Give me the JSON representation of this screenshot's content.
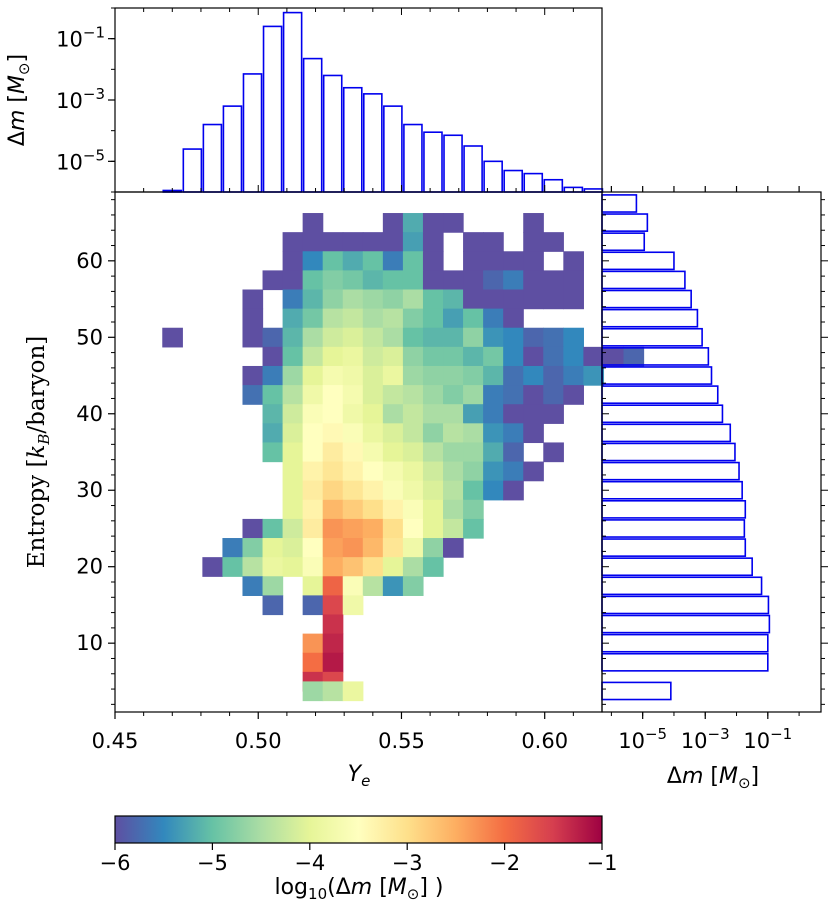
{
  "chart_data": [
    {
      "type": "heatmap",
      "panel": "main",
      "xlabel": "Y_e",
      "ylabel": "Entropy [k_B/baryon]",
      "xlim": [
        0.45,
        0.62
      ],
      "ylim": [
        1,
        69
      ],
      "x_ticks": [
        "0.45",
        "0.50",
        "0.55",
        "0.60"
      ],
      "y_ticks": [
        "10",
        "20",
        "30",
        "40",
        "50",
        "60"
      ],
      "bin_width": 0.007,
      "bin_height": 2.5,
      "x_start": 0.4665,
      "entropy_start": 3.75,
      "color_norm": [
        -6,
        -1
      ],
      "cmap": "Spectral_r",
      "rows": [
        {
          "e": 65.0,
          "v": [
            null,
            null,
            null,
            null,
            null,
            null,
            null,
            -6.0,
            null,
            null,
            null,
            -6.0,
            -5.2,
            -6.0,
            -6.0,
            null,
            null,
            null,
            -6.0,
            null,
            null,
            null,
            null,
            null
          ]
        },
        {
          "e": 62.5,
          "v": [
            null,
            null,
            null,
            null,
            null,
            null,
            -6.0,
            -6.0,
            -6.0,
            -6.0,
            -6.0,
            -6.0,
            -5.3,
            -6.0,
            null,
            -6.0,
            -6.0,
            null,
            -6.0,
            -6.0,
            null,
            null,
            null,
            null
          ]
        },
        {
          "e": 60.0,
          "v": [
            null,
            null,
            null,
            null,
            null,
            null,
            -6.0,
            -5.5,
            -5.0,
            -5.2,
            -5.0,
            -5.6,
            -5.0,
            -6.0,
            null,
            -6.0,
            -6.0,
            -6.0,
            -6.0,
            null,
            -6.0,
            null,
            null,
            null
          ]
        },
        {
          "e": 57.5,
          "v": [
            null,
            null,
            null,
            null,
            null,
            -6.0,
            -6.0,
            -5.0,
            -4.8,
            -4.9,
            -5.1,
            -5.0,
            -5.0,
            -6.0,
            -6.0,
            -6.0,
            -5.8,
            -5.6,
            -6.0,
            -6.0,
            -6.0,
            null,
            null,
            null
          ]
        },
        {
          "e": 55.0,
          "v": [
            null,
            null,
            null,
            null,
            -6.0,
            null,
            -5.6,
            -5.1,
            -4.7,
            -4.5,
            -4.6,
            -4.7,
            -4.5,
            -5.0,
            -5.1,
            -6.0,
            -6.0,
            -6.0,
            -6.0,
            -6.0,
            -6.0,
            null,
            null,
            null
          ]
        },
        {
          "e": 52.5,
          "v": [
            null,
            null,
            null,
            null,
            -6.0,
            null,
            -5.2,
            -4.9,
            -4.4,
            -4.3,
            -4.5,
            -4.4,
            -4.8,
            -5.0,
            -5.3,
            -5.0,
            -5.6,
            -6.0,
            null,
            null,
            null,
            null,
            null,
            null
          ]
        },
        {
          "e": 50.0,
          "v": [
            -6.0,
            null,
            null,
            null,
            -6.0,
            -5.8,
            -5.1,
            -4.5,
            -4.2,
            -4.1,
            -4.3,
            -4.5,
            -5.0,
            -5.1,
            -5.1,
            -4.7,
            -5.4,
            -5.5,
            -5.8,
            -5.7,
            -5.5,
            null,
            null,
            null
          ]
        },
        {
          "e": 47.5,
          "v": [
            null,
            null,
            null,
            null,
            null,
            -6.0,
            -5.0,
            -4.3,
            -4.0,
            -3.9,
            -4.2,
            -4.1,
            -4.7,
            -4.9,
            -4.9,
            -5.1,
            -4.9,
            -5.5,
            -6.0,
            -5.7,
            -5.5,
            -6.0,
            -6.0,
            -5.8
          ]
        },
        {
          "e": 45.0,
          "v": [
            null,
            null,
            null,
            null,
            -6.0,
            -5.6,
            -4.6,
            -4.0,
            -3.7,
            -3.8,
            -4.1,
            -3.9,
            -4.6,
            -4.7,
            -4.7,
            -4.8,
            -5.1,
            -5.7,
            -5.5,
            -5.8,
            -5.6,
            -5.4,
            null,
            null
          ]
        },
        {
          "e": 42.5,
          "v": [
            null,
            null,
            null,
            null,
            -5.7,
            -5.0,
            -4.4,
            -3.8,
            -3.5,
            -3.7,
            -4.1,
            -4.3,
            -4.4,
            -4.6,
            -4.8,
            -4.6,
            -5.6,
            -5.7,
            -6.0,
            -5.8,
            -6.0,
            null,
            null,
            null
          ]
        },
        {
          "e": 40.0,
          "v": [
            null,
            null,
            null,
            null,
            null,
            -5.1,
            -4.2,
            -3.6,
            -3.5,
            -3.8,
            -4.0,
            -4.5,
            -4.3,
            -4.5,
            -4.5,
            -5.3,
            -5.6,
            -6.0,
            -6.0,
            -6.0,
            null,
            null,
            null,
            null
          ]
        },
        {
          "e": 37.5,
          "v": [
            null,
            null,
            null,
            null,
            null,
            -5.2,
            -4.1,
            -3.5,
            -3.4,
            -3.6,
            -3.9,
            -4.1,
            -4.3,
            -4.7,
            -4.4,
            -4.5,
            -5.4,
            -5.6,
            -6.0,
            null,
            null,
            null,
            null,
            null
          ]
        },
        {
          "e": 35.0,
          "v": [
            null,
            null,
            null,
            null,
            null,
            -5.0,
            -4.0,
            -3.5,
            -3.2,
            -3.4,
            -3.7,
            -4.0,
            -4.1,
            -4.4,
            -4.6,
            -4.6,
            -5.2,
            -5.8,
            null,
            -6.0,
            null,
            null,
            null,
            null
          ]
        },
        {
          "e": 32.5,
          "v": [
            null,
            null,
            null,
            null,
            null,
            null,
            -4.0,
            -3.3,
            -3.1,
            -3.3,
            -3.5,
            -3.7,
            -3.9,
            -4.2,
            -4.5,
            -4.7,
            -5.4,
            -5.6,
            -6.0,
            null,
            null,
            null,
            null,
            null
          ]
        },
        {
          "e": 30.0,
          "v": [
            null,
            null,
            null,
            null,
            null,
            null,
            -4.0,
            -3.2,
            -2.9,
            -3.1,
            -3.3,
            -3.6,
            -3.8,
            -4.1,
            -4.4,
            -5.0,
            -5.5,
            -6.0,
            null,
            null,
            null,
            null,
            null,
            null
          ]
        },
        {
          "e": 27.5,
          "v": [
            null,
            null,
            null,
            null,
            null,
            null,
            -4.0,
            -3.3,
            -2.6,
            -2.8,
            -3.0,
            -3.3,
            -3.6,
            -4.0,
            -4.5,
            -4.8,
            null,
            null,
            null,
            null,
            null,
            null,
            null,
            null
          ]
        },
        {
          "e": 25.0,
          "v": [
            null,
            null,
            null,
            null,
            -6.0,
            -5.0,
            -4.2,
            -3.2,
            -2.3,
            -2.4,
            -2.5,
            -3.0,
            -3.5,
            -4.0,
            -4.3,
            -5.0,
            null,
            null,
            null,
            null,
            null,
            null,
            null,
            null
          ]
        },
        {
          "e": 22.5,
          "v": [
            null,
            null,
            null,
            -5.6,
            -4.8,
            -4.0,
            -4.1,
            -3.5,
            -2.4,
            -2.3,
            -2.6,
            -3.1,
            -3.8,
            -4.7,
            -6.0,
            null,
            null,
            null,
            null,
            null,
            null,
            null,
            null,
            null
          ]
        },
        {
          "e": 20.0,
          "v": [
            null,
            null,
            -6.0,
            -5.0,
            -4.4,
            -3.9,
            -4.0,
            -3.6,
            -2.5,
            -2.7,
            -3.0,
            -4.0,
            -4.5,
            -5.0,
            null,
            null,
            null,
            null,
            null,
            null,
            null,
            null,
            null,
            null
          ]
        },
        {
          "e": 17.5,
          "v": [
            null,
            null,
            null,
            null,
            -5.6,
            -4.6,
            null,
            -4.0,
            -1.9,
            -3.6,
            -4.4,
            -5.4,
            -4.8,
            null,
            null,
            null,
            null,
            null,
            null,
            null,
            null,
            null,
            null,
            null
          ]
        },
        {
          "e": 15.0,
          "v": [
            null,
            null,
            null,
            null,
            null,
            -5.8,
            null,
            -5.8,
            -1.6,
            -3.8,
            null,
            null,
            null,
            null,
            null,
            null,
            null,
            null,
            null,
            null,
            null,
            null,
            null,
            null
          ]
        },
        {
          "e": 12.5,
          "v": [
            null,
            null,
            null,
            null,
            null,
            null,
            null,
            null,
            -1.4,
            null,
            null,
            null,
            null,
            null,
            null,
            null,
            null,
            null,
            null,
            null,
            null,
            null,
            null,
            null
          ]
        },
        {
          "e": 10.0,
          "v": [
            null,
            null,
            null,
            null,
            null,
            null,
            null,
            -2.3,
            -1.3,
            null,
            null,
            null,
            null,
            null,
            null,
            null,
            null,
            null,
            null,
            null,
            null,
            null,
            null,
            null
          ]
        },
        {
          "e": 7.5,
          "v": [
            null,
            null,
            null,
            null,
            null,
            null,
            null,
            -2.0,
            -1.2,
            null,
            null,
            null,
            null,
            null,
            null,
            null,
            null,
            null,
            null,
            null,
            null,
            null,
            null,
            null
          ]
        },
        {
          "e": 5.0,
          "v": [
            null,
            null,
            null,
            null,
            null,
            null,
            null,
            -1.4,
            -1.6,
            null,
            null,
            null,
            null,
            null,
            null,
            null,
            null,
            null,
            null,
            null,
            null,
            null,
            null,
            null
          ]
        },
        {
          "e": 3.75,
          "v": [
            null,
            null,
            null,
            null,
            null,
            null,
            null,
            -4.6,
            -4.4,
            -3.9,
            null,
            null,
            null,
            null,
            null,
            null,
            null,
            null,
            null,
            null,
            null,
            null,
            null,
            null
          ]
        }
      ]
    },
    {
      "type": "bar",
      "panel": "top-histogram",
      "ylabel": "Δm [M_⊙]",
      "yscale": "log",
      "ylim_log10": [
        -6.0,
        0.0
      ],
      "y_ticks": [
        "10^-1",
        "10^-3",
        "10^-5"
      ],
      "bin_edges": [
        0.4665,
        0.4735,
        0.4805,
        0.4875,
        0.4945,
        0.5015,
        0.5085,
        0.5155,
        0.5225,
        0.5295,
        0.5365,
        0.5435,
        0.5505,
        0.5575,
        0.5645,
        0.5715,
        0.5785,
        0.5855,
        0.5925,
        0.5995,
        0.6065,
        0.6135,
        0.6205
      ],
      "log10_values": [
        -5.95,
        -4.6,
        -3.8,
        -3.2,
        -2.15,
        -0.6,
        -0.15,
        -1.65,
        -2.2,
        -2.6,
        -2.8,
        -3.2,
        -3.8,
        -4.05,
        -4.15,
        -4.5,
        -5.0,
        -5.3,
        -5.4,
        -5.6,
        -5.85,
        -5.9
      ]
    },
    {
      "type": "bar",
      "panel": "right-histogram",
      "orientation": "horizontal",
      "xlabel": "Δm [M_⊙]",
      "xscale": "log",
      "xlim_log10": [
        -6.3,
        0.7
      ],
      "x_ticks": [
        "10^-5",
        "10^-3",
        "10^-1"
      ],
      "bin_height": 2.5,
      "entropy_centers": [
        3.75,
        7.5,
        10.0,
        12.5,
        15.0,
        17.5,
        20.0,
        22.5,
        25.0,
        27.5,
        30.0,
        32.5,
        35.0,
        37.5,
        40.0,
        42.5,
        45.0,
        47.5,
        50.0,
        52.5,
        55.0,
        57.5,
        60.0,
        62.5,
        65.0,
        67.5
      ],
      "log10_values": [
        -4.1,
        -1.0,
        -1.0,
        -0.95,
        -0.98,
        -1.2,
        -1.5,
        -1.72,
        -1.75,
        -1.72,
        -1.82,
        -1.92,
        -2.05,
        -2.2,
        -2.45,
        -2.6,
        -2.8,
        -2.9,
        -3.1,
        -3.25,
        -3.45,
        -3.65,
        -4.0,
        -4.95,
        -4.85,
        -5.2
      ]
    },
    {
      "type": "colorbar",
      "label": "log10(Δm [M_⊙] )",
      "ticks": [
        "−6",
        "−5",
        "−4",
        "−3",
        "−2",
        "−1"
      ],
      "range": [
        -6,
        -1
      ]
    }
  ]
}
